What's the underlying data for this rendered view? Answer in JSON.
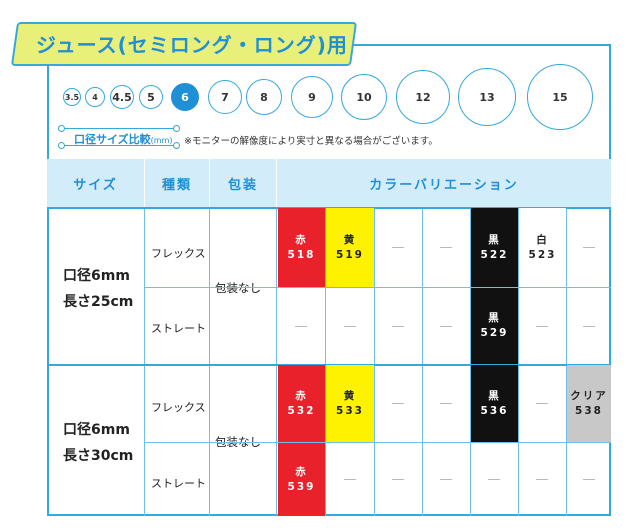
{
  "title": "ジュース(セミロング・ロング)用",
  "size_circles": [
    {
      "label": "3.5",
      "selected": false
    },
    {
      "label": "4",
      "selected": false
    },
    {
      "label": "4.5",
      "selected": false
    },
    {
      "label": "5",
      "selected": false
    },
    {
      "label": "6",
      "selected": true
    },
    {
      "label": "7",
      "selected": false
    },
    {
      "label": "8",
      "selected": false
    },
    {
      "label": "9",
      "selected": false
    },
    {
      "label": "10",
      "selected": false
    },
    {
      "label": "12",
      "selected": false
    },
    {
      "label": "13",
      "selected": false
    },
    {
      "label": "15",
      "selected": false
    }
  ],
  "comparison": {
    "label": "口径サイズ比較",
    "unit": "(mm)",
    "note": "※モニターの解像度により実寸と異なる場合がございます。"
  },
  "headers": {
    "size": "サイズ",
    "type": "種類",
    "packaging": "包装",
    "variation": "カラーバリエーション"
  },
  "groups": [
    {
      "size_line1": "口径6mm",
      "size_line2": "長さ25cm",
      "packaging": "包装なし",
      "rows": [
        {
          "type": "フレックス",
          "cells": [
            {
              "color": "red",
              "name": "赤",
              "code": "518"
            },
            {
              "color": "yellow",
              "name": "黄",
              "code": "519"
            },
            {
              "color": "none"
            },
            {
              "color": "none"
            },
            {
              "color": "black",
              "name": "黒",
              "code": "522"
            },
            {
              "color": "white",
              "name": "白",
              "code": "523"
            },
            {
              "color": "none"
            }
          ]
        },
        {
          "type": "ストレート",
          "cells": [
            {
              "color": "none"
            },
            {
              "color": "none"
            },
            {
              "color": "none"
            },
            {
              "color": "none"
            },
            {
              "color": "black",
              "name": "黒",
              "code": "529"
            },
            {
              "color": "none"
            },
            {
              "color": "none"
            }
          ]
        }
      ]
    },
    {
      "size_line1": "口径6mm",
      "size_line2": "長さ30cm",
      "packaging": "包装なし",
      "rows": [
        {
          "type": "フレックス",
          "cells": [
            {
              "color": "red",
              "name": "赤",
              "code": "532"
            },
            {
              "color": "yellow",
              "name": "黄",
              "code": "533"
            },
            {
              "color": "none"
            },
            {
              "color": "none"
            },
            {
              "color": "black",
              "name": "黒",
              "code": "536"
            },
            {
              "color": "none"
            },
            {
              "color": "gray",
              "name": "クリア",
              "code": "538"
            }
          ]
        },
        {
          "type": "ストレート",
          "cells": [
            {
              "color": "red",
              "name": "赤",
              "code": "539"
            },
            {
              "color": "none"
            },
            {
              "color": "none"
            },
            {
              "color": "none"
            },
            {
              "color": "none"
            },
            {
              "color": "none"
            },
            {
              "color": "none"
            }
          ]
        }
      ]
    }
  ],
  "colors": {
    "accent": "#1f8fd6",
    "border": "#35a9dc",
    "header_bg": "#d3ecf9",
    "title_bg": "#e9f07a",
    "red": "#e8212b",
    "yellow": "#fff200",
    "black": "#111111",
    "gray": "#c8c8c8"
  }
}
